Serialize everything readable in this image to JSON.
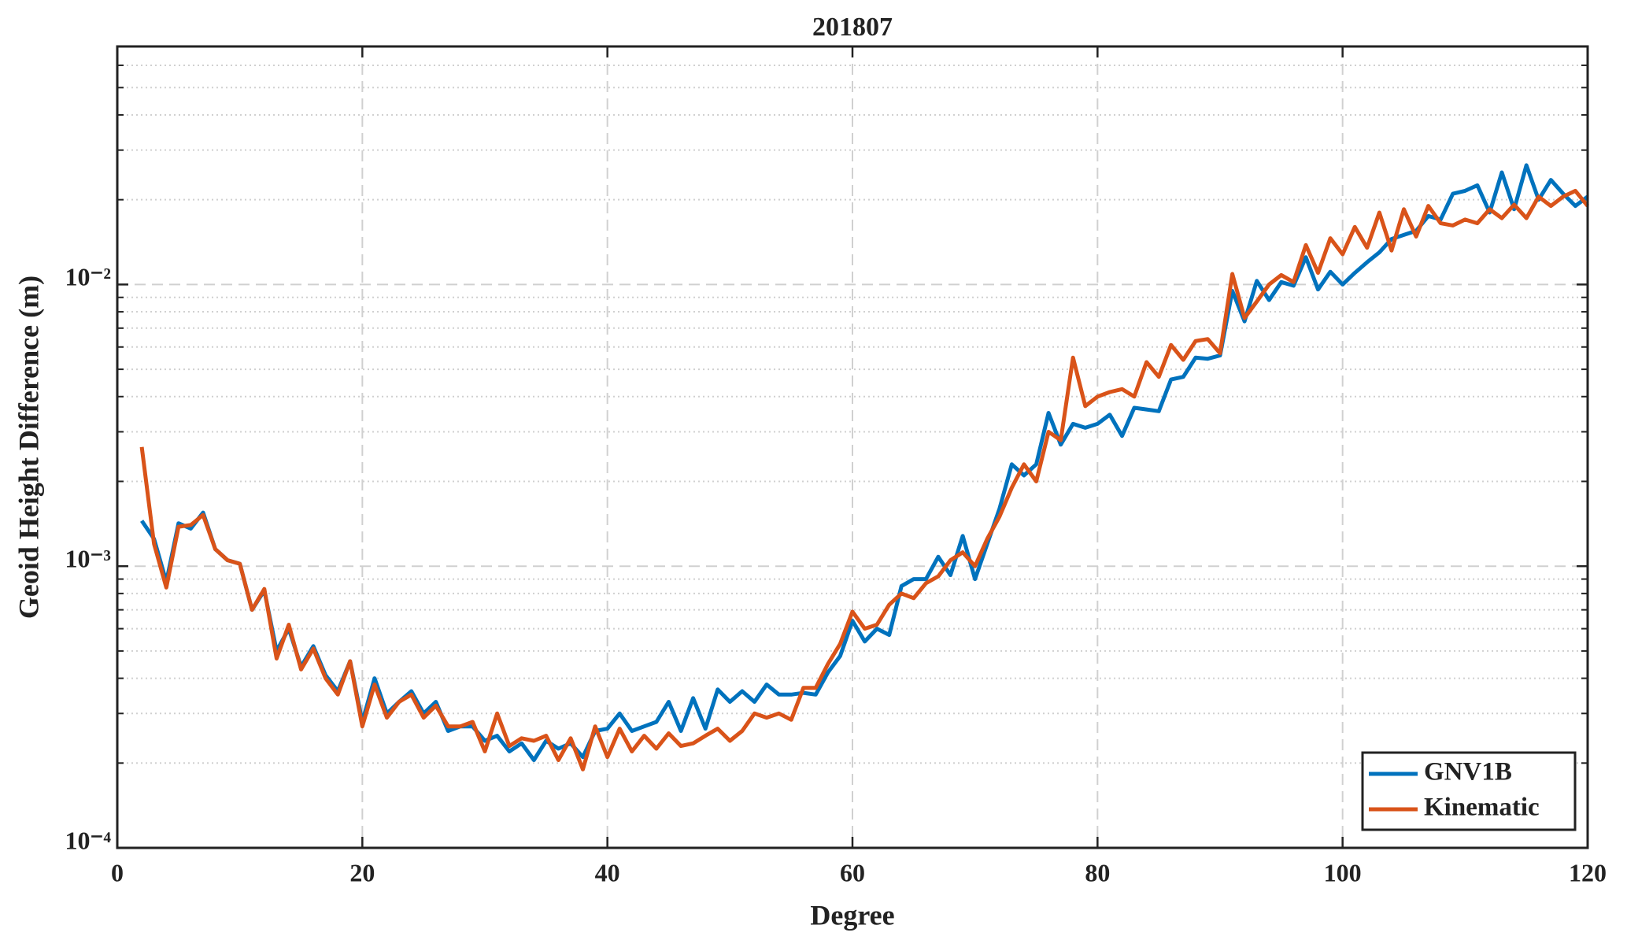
{
  "chart_data": {
    "type": "line",
    "title": "201807",
    "xlabel": "Degree",
    "ylabel": "Geoid Height Difference (m)",
    "log_y": true,
    "grid": true,
    "minor_grid": true,
    "legend": "lower right",
    "xlim": [
      0,
      120
    ],
    "xticks": [
      0,
      20,
      40,
      60,
      80,
      100,
      120
    ],
    "ylim": [
      0.0001,
      0.07
    ],
    "yticks": [
      {
        "value": 0.0001,
        "label": "10⁻⁴"
      },
      {
        "value": 0.001,
        "label": "10⁻³"
      },
      {
        "value": 0.01,
        "label": "10⁻²"
      }
    ],
    "x": [
      2,
      3,
      4,
      5,
      6,
      7,
      8,
      9,
      10,
      11,
      12,
      13,
      14,
      15,
      16,
      17,
      18,
      19,
      20,
      21,
      22,
      23,
      24,
      25,
      26,
      27,
      28,
      29,
      30,
      31,
      32,
      33,
      34,
      35,
      36,
      37,
      38,
      39,
      40,
      41,
      42,
      43,
      44,
      45,
      46,
      47,
      48,
      49,
      50,
      51,
      52,
      53,
      54,
      55,
      56,
      57,
      58,
      59,
      60,
      61,
      62,
      63,
      64,
      65,
      66,
      67,
      68,
      69,
      70,
      71,
      72,
      73,
      74,
      75,
      76,
      77,
      78,
      79,
      80,
      81,
      82,
      83,
      84,
      85,
      86,
      87,
      88,
      89,
      90,
      91,
      92,
      93,
      94,
      95,
      96,
      97,
      98,
      99,
      100,
      101,
      102,
      103,
      104,
      105,
      106,
      107,
      108,
      109,
      110,
      111,
      112,
      113,
      114,
      115,
      116,
      117,
      118,
      119,
      120
    ],
    "series": [
      {
        "name": "GNV1B",
        "color": "#0072bd",
        "values": [
          0.00145,
          0.00125,
          0.00088,
          0.00142,
          0.00136,
          0.00155,
          0.00115,
          0.00105,
          0.00102,
          0.0007,
          0.00082,
          0.0005,
          0.0006,
          0.00044,
          0.00052,
          0.00041,
          0.00036,
          0.00046,
          0.00028,
          0.0004,
          0.0003,
          0.00033,
          0.00036,
          0.0003,
          0.00033,
          0.00026,
          0.00027,
          0.00027,
          0.00024,
          0.00025,
          0.00022,
          0.000235,
          0.000205,
          0.00024,
          0.000225,
          0.000235,
          0.00021,
          0.00026,
          0.000265,
          0.0003,
          0.00026,
          0.00027,
          0.00028,
          0.00033,
          0.00026,
          0.00034,
          0.000265,
          0.000365,
          0.00033,
          0.00036,
          0.00033,
          0.00038,
          0.00035,
          0.00035,
          0.000355,
          0.00035,
          0.00042,
          0.00048,
          0.00064,
          0.00054,
          0.0006,
          0.00057,
          0.00085,
          0.0009,
          0.0009,
          0.00108,
          0.00093,
          0.00128,
          0.0009,
          0.0012,
          0.0016,
          0.0023,
          0.0021,
          0.0023,
          0.0035,
          0.0027,
          0.0032,
          0.0031,
          0.0032,
          0.00345,
          0.0029,
          0.00365,
          0.0036,
          0.00355,
          0.0046,
          0.0047,
          0.0055,
          0.00545,
          0.0056,
          0.0095,
          0.0074,
          0.0103,
          0.0088,
          0.0102,
          0.0099,
          0.0125,
          0.0096,
          0.0111,
          0.01,
          0.011,
          0.012,
          0.013,
          0.0145,
          0.015,
          0.0155,
          0.0175,
          0.017,
          0.021,
          0.0215,
          0.0225,
          0.018,
          0.025,
          0.0185,
          0.0265,
          0.02,
          0.0235,
          0.021,
          0.019,
          0.0205
        ]
      },
      {
        "name": "Kinematic",
        "color": "#d95319",
        "values": [
          0.00265,
          0.0012,
          0.00084,
          0.00138,
          0.0014,
          0.00152,
          0.00115,
          0.00105,
          0.00102,
          0.0007,
          0.00083,
          0.00047,
          0.00062,
          0.00043,
          0.00051,
          0.0004,
          0.00035,
          0.00046,
          0.00027,
          0.00038,
          0.00029,
          0.00033,
          0.00035,
          0.00029,
          0.00032,
          0.00027,
          0.00027,
          0.00028,
          0.00022,
          0.0003,
          0.00023,
          0.000245,
          0.00024,
          0.00025,
          0.000205,
          0.000245,
          0.00019,
          0.00027,
          0.00021,
          0.000265,
          0.00022,
          0.00025,
          0.000225,
          0.000255,
          0.00023,
          0.000235,
          0.00025,
          0.000265,
          0.00024,
          0.00026,
          0.0003,
          0.00029,
          0.0003,
          0.000285,
          0.00037,
          0.00037,
          0.00045,
          0.00053,
          0.00069,
          0.0006,
          0.00062,
          0.00073,
          0.0008,
          0.00077,
          0.00087,
          0.00092,
          0.00105,
          0.00112,
          0.001,
          0.00125,
          0.0015,
          0.0019,
          0.0023,
          0.002,
          0.003,
          0.0028,
          0.0055,
          0.0037,
          0.004,
          0.00415,
          0.00425,
          0.004,
          0.0053,
          0.0047,
          0.0061,
          0.0054,
          0.0063,
          0.0064,
          0.0057,
          0.0109,
          0.0076,
          0.0087,
          0.01,
          0.0108,
          0.0102,
          0.0138,
          0.011,
          0.0146,
          0.0128,
          0.016,
          0.0135,
          0.018,
          0.0132,
          0.0185,
          0.0148,
          0.019,
          0.0165,
          0.0162,
          0.017,
          0.0165,
          0.0185,
          0.0172,
          0.0192,
          0.0172,
          0.0205,
          0.019,
          0.0205,
          0.0215,
          0.019
        ]
      }
    ]
  }
}
